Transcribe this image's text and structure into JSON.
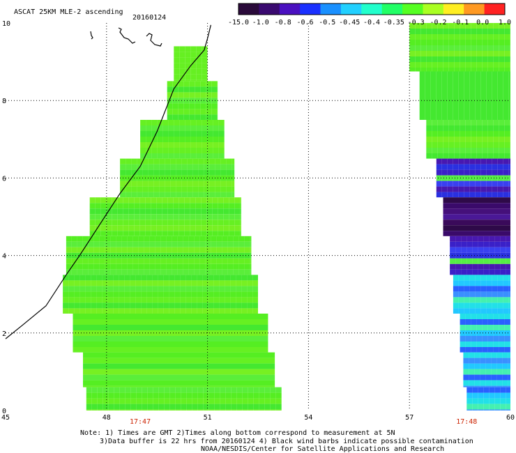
{
  "header": {
    "title": "ASCAT 25KM MLE-2 ascending",
    "date": "20160124"
  },
  "footer": {
    "line1": "Note: 1) Times are GMT 2)Times along bottom correspond to measurement at 5N",
    "line2": "3)Data buffer is 22 hrs from 20160124 4) Black wind barbs indicate possible contamination",
    "line3": "NOAA/NESDIS/Center for Satellite Applications and Research"
  },
  "colors": {
    "background": "#ffffff",
    "coastline": "#000000",
    "grid": "#000000",
    "time_label": "#cc2200"
  },
  "chart_data": {
    "type": "heatmap",
    "title": "ASCAT 25KM MLE-2 ascending",
    "subtitle": "20160124",
    "xlabel": "",
    "ylabel": "",
    "xlim": [
      45,
      60
    ],
    "ylim": [
      0,
      10
    ],
    "x_ticks": [
      45,
      48,
      51,
      54,
      57,
      60
    ],
    "y_ticks": [
      0,
      2,
      4,
      6,
      8,
      10
    ],
    "grid": true,
    "colorbar": {
      "position": "top-right",
      "tick_labels": [
        "-15.0",
        "-1.0",
        "-0.8",
        "-0.6",
        "-0.5",
        "-0.45",
        "-0.4",
        "-0.35",
        "-0.3",
        "-0.2",
        "-0.1",
        "0.0",
        "1.0"
      ],
      "colors": [
        "#2a0a3a",
        "#3a0a70",
        "#4a10c0",
        "#1a30ff",
        "#1a90ff",
        "#22d0ff",
        "#22ffcc",
        "#22ff66",
        "#55ff22",
        "#aaff22",
        "#ffee22",
        "#ff9922",
        "#ff2222"
      ]
    },
    "time_labels": [
      {
        "x": 49,
        "label": "17:47"
      },
      {
        "x": 58.7,
        "label": "17:48"
      }
    ],
    "swaths": [
      {
        "name": "west pass",
        "rows": [
          {
            "y": 9.0,
            "x_min": 50,
            "x_max": 51.0,
            "level": "mid"
          },
          {
            "y": 8.0,
            "x_min": 49.8,
            "x_max": 51.3,
            "level": "mid"
          },
          {
            "y": 7.0,
            "x_min": 49.0,
            "x_max": 51.5,
            "level": "mid"
          },
          {
            "y": 6.0,
            "x_min": 48.4,
            "x_max": 51.8,
            "level": "mid"
          },
          {
            "y": 5.0,
            "x_min": 47.5,
            "x_max": 52.0,
            "level": "mid"
          },
          {
            "y": 4.0,
            "x_min": 46.8,
            "x_max": 52.3,
            "level": "mid"
          },
          {
            "y": 3.0,
            "x_min": 46.7,
            "x_max": 52.5,
            "level": "mid"
          },
          {
            "y": 2.0,
            "x_min": 47.0,
            "x_max": 52.8,
            "level": "mid"
          },
          {
            "y": 1.0,
            "x_min": 47.3,
            "x_max": 53.0,
            "level": "mid"
          },
          {
            "y": 0.2,
            "x_min": 47.4,
            "x_max": 53.2,
            "level": "mid"
          }
        ]
      },
      {
        "name": "east pass",
        "rows": [
          {
            "y": 9.5,
            "x_min": 57.0,
            "x_max": 60,
            "level": "mid"
          },
          {
            "y": 8.0,
            "x_min": 57.3,
            "x_max": 60,
            "level": "mid"
          },
          {
            "y": 7.0,
            "x_min": 57.5,
            "x_max": 60,
            "level": "mid"
          },
          {
            "y": 6.0,
            "x_min": 57.8,
            "x_max": 60,
            "level": "low"
          },
          {
            "y": 5.0,
            "x_min": 58.0,
            "x_max": 60,
            "level": "very-low"
          },
          {
            "y": 4.0,
            "x_min": 58.2,
            "x_max": 60,
            "level": "low"
          },
          {
            "y": 3.0,
            "x_min": 58.3,
            "x_max": 60,
            "level": "blue"
          },
          {
            "y": 2.0,
            "x_min": 58.5,
            "x_max": 60,
            "level": "blue"
          },
          {
            "y": 1.0,
            "x_min": 58.6,
            "x_max": 60,
            "level": "blue"
          },
          {
            "y": 0.2,
            "x_min": 58.7,
            "x_max": 60,
            "level": "blue"
          }
        ]
      }
    ],
    "coastline": [
      [
        45,
        1.85
      ],
      [
        45.5,
        2.2
      ],
      [
        46.2,
        2.7
      ],
      [
        46.8,
        3.5
      ],
      [
        47.2,
        4.0
      ],
      [
        47.8,
        4.8
      ],
      [
        48.4,
        5.6
      ],
      [
        49.0,
        6.3
      ],
      [
        49.5,
        7.2
      ],
      [
        50.0,
        8.3
      ],
      [
        50.5,
        8.9
      ],
      [
        50.9,
        9.3
      ],
      [
        51.0,
        9.6
      ],
      [
        51.1,
        9.95
      ]
    ]
  }
}
